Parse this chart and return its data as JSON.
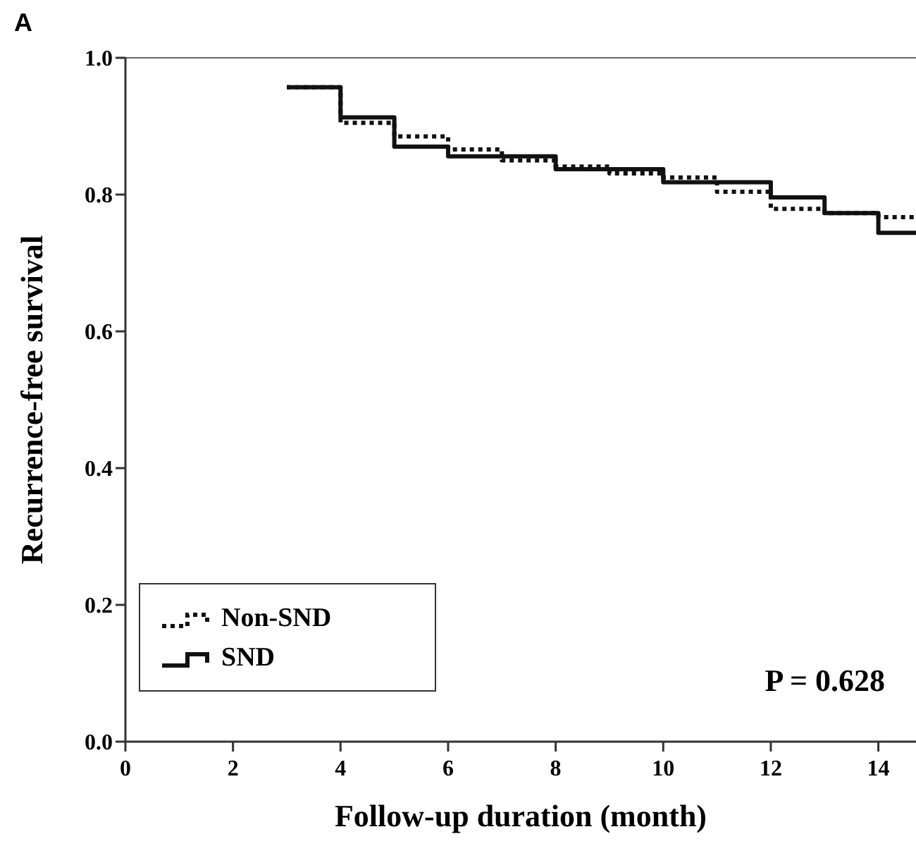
{
  "chart_data": {
    "type": "step",
    "title": "A",
    "xlabel": "Follow-up duration (month)",
    "ylabel": "Recurrence-free survival",
    "xlim": [
      0,
      14.7
    ],
    "ylim": [
      0,
      1
    ],
    "xticks": [
      0,
      2,
      4,
      6,
      8,
      10,
      12,
      14
    ],
    "yticks": [
      {
        "value": 0,
        "label": "0.0"
      },
      0.2,
      0.4,
      0.6,
      0.8,
      {
        "value": 1,
        "label": "1.0"
      }
    ],
    "x": [
      3,
      4,
      5,
      6,
      7,
      8,
      9,
      10,
      11,
      12,
      13,
      14,
      14.7
    ],
    "series": [
      {
        "name": "Non-SND",
        "color": "#111111",
        "line_style": "dotted",
        "values": [
          0.957,
          0.905,
          0.885,
          0.866,
          0.85,
          0.841,
          0.831,
          0.825,
          0.804,
          0.779,
          0.773,
          0.767,
          0.767
        ]
      },
      {
        "name": "SND",
        "color": "#111111",
        "line_style": "solid",
        "values": [
          0.957,
          0.913,
          0.87,
          0.856,
          0.856,
          0.837,
          0.837,
          0.818,
          0.818,
          0.796,
          0.773,
          0.744,
          0.744
        ]
      }
    ],
    "legend": "bottom left",
    "grid": false,
    "annotations": [
      {
        "text": "P = 0.628"
      }
    ]
  }
}
